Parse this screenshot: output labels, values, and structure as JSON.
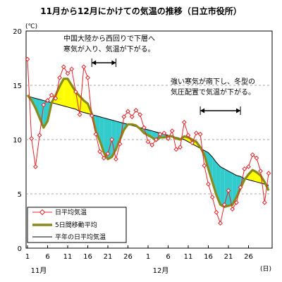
{
  "chart_data": {
    "type": "line",
    "title": "11月から12月にかけての気温の推移（日立市役所）",
    "ylabel": "(℃)",
    "xunit": "(日)",
    "ylim": [
      0,
      20
    ],
    "yticks": [
      "0",
      "5",
      "10",
      "15",
      "20"
    ],
    "xticks": [
      "1",
      "6",
      "11",
      "16",
      "21",
      "26",
      "1",
      "6",
      "11",
      "16",
      "21",
      "26"
    ],
    "month_labels": [
      "11月",
      "12月"
    ],
    "grid": "horizontal dashed",
    "legend_position": "bottom-left",
    "x": [
      "11/1",
      "11/2",
      "11/3",
      "11/4",
      "11/5",
      "11/6",
      "11/7",
      "11/8",
      "11/9",
      "11/10",
      "11/11",
      "11/12",
      "11/13",
      "11/14",
      "11/15",
      "11/16",
      "11/17",
      "11/18",
      "11/19",
      "11/20",
      "11/21",
      "11/22",
      "11/23",
      "11/24",
      "11/25",
      "11/26",
      "11/27",
      "11/28",
      "11/29",
      "11/30",
      "12/1",
      "12/2",
      "12/3",
      "12/4",
      "12/5",
      "12/6",
      "12/7",
      "12/8",
      "12/9",
      "12/10",
      "12/11",
      "12/12",
      "12/13",
      "12/14",
      "12/15",
      "12/16",
      "12/17",
      "12/18",
      "12/19",
      "12/20",
      "12/21",
      "12/22",
      "12/23",
      "12/24",
      "12/25",
      "12/26",
      "12/27",
      "12/28",
      "12/29",
      "12/30",
      "12/31"
    ],
    "series": [
      {
        "name": "日平均気温",
        "style": "line-with-diamonds",
        "color": "#e8242b",
        "values": [
          17.4,
          10.1,
          7.5,
          10.4,
          13.2,
          13.6,
          14.1,
          13.8,
          15.7,
          16.7,
          16.1,
          16.5,
          14.4,
          12.3,
          16.7,
          15.7,
          12.2,
          10.5,
          8.9,
          8.3,
          8.7,
          10.0,
          8.2,
          9.6,
          12.1,
          12.6,
          12.1,
          12.7,
          12.3,
          11.1,
          9.8,
          9.5,
          10.0,
          10.5,
          10.6,
          10.1,
          10.8,
          9.1,
          9.3,
          11.6,
          10.4,
          9.7,
          10.6,
          10.5,
          7.6,
          5.9,
          4.7,
          3.3,
          2.3,
          4.0,
          5.3,
          3.6,
          4.2,
          5.6,
          7.3,
          7.5,
          8.6,
          8.3,
          7.1,
          4.2,
          6.9
        ]
      },
      {
        "name": "5日間移動平均",
        "style": "thick-line",
        "color": "#8a8a1c",
        "values": [
          14.1,
          13.6,
          12.9,
          12.0,
          11.1,
          11.7,
          13.4,
          14.1,
          14.9,
          15.6,
          15.6,
          15.0,
          14.4,
          14.0,
          13.6,
          13.3,
          12.4,
          10.8,
          9.9,
          8.8,
          8.2,
          8.4,
          9.1,
          10.0,
          10.9,
          11.4,
          11.4,
          11.3,
          11.0,
          10.6,
          10.4,
          10.2,
          9.9,
          10.2,
          10.2,
          10.3,
          10.3,
          10.1,
          10.0,
          10.3,
          10.2,
          10.0,
          9.8,
          9.3,
          8.6,
          7.3,
          6.1,
          4.9,
          4.0,
          3.8,
          3.9,
          4.0,
          4.7,
          5.5,
          6.3,
          6.8,
          7.2,
          7.0,
          6.7,
          6.1,
          5.3
        ]
      },
      {
        "name": "平年の日平均気温",
        "style": "thin-line",
        "color": "#000000",
        "values": [
          14.0,
          13.9,
          13.8,
          13.7,
          13.6,
          13.5,
          13.4,
          13.3,
          13.2,
          13.1,
          13.0,
          12.9,
          12.8,
          12.6,
          12.5,
          12.4,
          12.3,
          12.2,
          12.1,
          12.0,
          11.9,
          11.8,
          11.7,
          11.6,
          11.5,
          11.4,
          11.3,
          11.2,
          11.1,
          11.0,
          10.9,
          10.8,
          10.7,
          10.6,
          10.5,
          10.4,
          10.3,
          10.2,
          10.1,
          10.0,
          9.8,
          9.6,
          9.4,
          9.2,
          9.0,
          8.8,
          8.4,
          7.9,
          7.5,
          7.3,
          7.1,
          6.9,
          6.7,
          6.6,
          6.4,
          6.3,
          6.2,
          6.1,
          6.0,
          5.9,
          5.8
        ]
      }
    ],
    "fill": {
      "above_normal_color": "#ffff00",
      "below_normal_color": "#33cccc"
    },
    "annotations": [
      {
        "lines": [
          "中国大陸から西回りで下層へ",
          "寒気が入り、気温が下がる。"
        ],
        "from": "11/17",
        "to": "11/23"
      },
      {
        "lines": [
          "強い寒気が南下し、冬型の",
          "気圧配置で気温が下がる。"
        ],
        "from": "12/14",
        "to": "12/24"
      }
    ]
  }
}
